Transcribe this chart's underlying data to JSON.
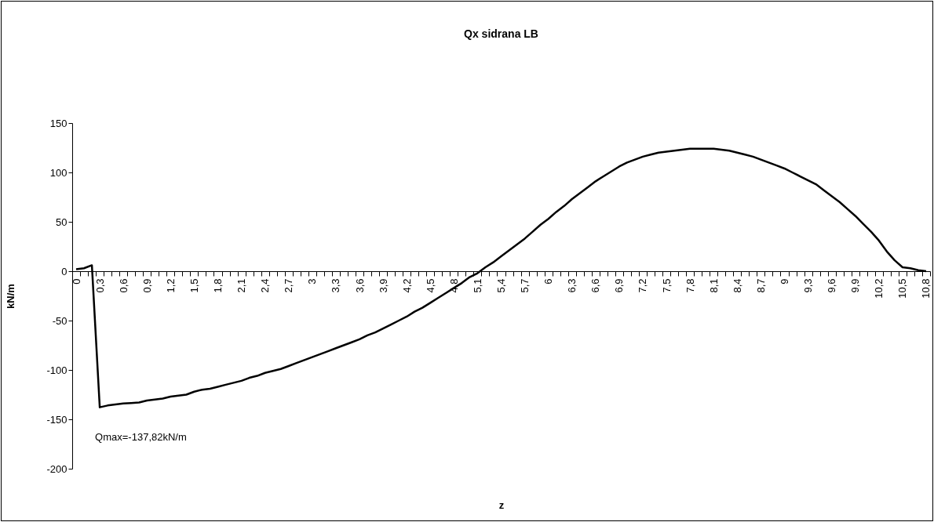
{
  "chart_data": {
    "type": "line",
    "title": "Qx sidrana LB",
    "xlabel": "z",
    "ylabel": "kN/m",
    "categories": [
      "0",
      null,
      null,
      "0,3",
      null,
      null,
      "0,6",
      null,
      null,
      "0,9",
      null,
      null,
      "1,2",
      null,
      null,
      "1,5",
      null,
      null,
      "1,8",
      null,
      null,
      "2,1",
      null,
      null,
      "2,4",
      null,
      null,
      "2,7",
      null,
      null,
      "3",
      null,
      null,
      "3,3",
      null,
      null,
      "3,6",
      null,
      null,
      "3,9",
      null,
      null,
      "4,2",
      null,
      null,
      "4,5",
      null,
      null,
      "4,8",
      null,
      null,
      "5,1",
      null,
      null,
      "5,4",
      null,
      null,
      "5,7",
      null,
      null,
      "6",
      null,
      null,
      "6,3",
      null,
      null,
      "6,6",
      null,
      null,
      "6,9",
      null,
      null,
      "7,2",
      null,
      null,
      "7,5",
      null,
      null,
      "7,8",
      null,
      null,
      "8,1",
      null,
      null,
      "8,4",
      null,
      null,
      "8,7",
      null,
      null,
      "9",
      null,
      null,
      "9,3",
      null,
      null,
      "9,6",
      null,
      null,
      "9,9",
      null,
      null,
      "10,2",
      null,
      null,
      "10,5",
      null,
      null,
      "10,8"
    ],
    "series": [
      {
        "color": "#000000",
        "values": [
          2,
          3,
          6,
          -137.82,
          -136,
          -135,
          -134,
          -133.5,
          -133,
          -131,
          -130,
          -129,
          -127,
          -126,
          -125,
          -122,
          -120,
          -119,
          -117,
          -115,
          -113,
          -111,
          -108,
          -106,
          -103,
          -101,
          -99,
          -96,
          -93,
          -90,
          -87,
          -84,
          -81,
          -78,
          -75,
          -72,
          -69,
          -65,
          -62,
          -58,
          -54,
          -50,
          -46,
          -41,
          -37,
          -32,
          -27,
          -22,
          -17,
          -12,
          -6,
          -2,
          4,
          9,
          15,
          21,
          27,
          33,
          40,
          47,
          53,
          60,
          66,
          73,
          79,
          85,
          91,
          96,
          101,
          106,
          110,
          113,
          116,
          118,
          120,
          121,
          122,
          123,
          124,
          124,
          124,
          124,
          123,
          122,
          120,
          118,
          116,
          113,
          110,
          107,
          104,
          100,
          96,
          92,
          88,
          82,
          76,
          70,
          63,
          56,
          48,
          40,
          31,
          20,
          11,
          4,
          3,
          1,
          0
        ]
      }
    ],
    "ylim": [
      -200,
      150
    ],
    "yticks": [
      -200,
      -150,
      -100,
      -50,
      0,
      50,
      100,
      150
    ],
    "annotations": [
      {
        "text": "Qmax=-137,82kN/m",
        "x": "0,3",
        "y": -137.82
      }
    ]
  }
}
